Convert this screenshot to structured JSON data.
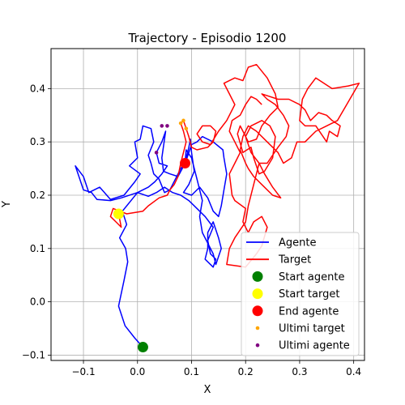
{
  "chart_data": {
    "type": "line",
    "title": "Trajectory - Episodio 1200",
    "xlabel": "X",
    "ylabel": "Y",
    "xlim": [
      -0.16,
      0.42
    ],
    "ylim": [
      -0.11,
      0.475
    ],
    "xticks": [
      -0.1,
      0.0,
      0.1,
      0.2,
      0.3,
      0.4
    ],
    "yticks": [
      -0.1,
      0.0,
      0.1,
      0.2,
      0.3,
      0.4
    ],
    "xtick_labels": [
      "−0.1",
      "0.0",
      "0.1",
      "0.2",
      "0.3",
      "0.4"
    ],
    "ytick_labels": [
      "−0.1",
      "0.0",
      "0.1",
      "0.2",
      "0.3",
      "0.4"
    ],
    "grid": true,
    "legend_position": "lower-right",
    "series": [
      {
        "name": "Agente",
        "color": "#0000ff",
        "points": [
          [
            0.01,
            -0.085
          ],
          [
            -0.005,
            -0.068
          ],
          [
            -0.023,
            -0.045
          ],
          [
            -0.035,
            -0.008
          ],
          [
            -0.025,
            0.04
          ],
          [
            -0.018,
            0.075
          ],
          [
            -0.022,
            0.1
          ],
          [
            -0.033,
            0.12
          ],
          [
            -0.02,
            0.145
          ],
          [
            -0.028,
            0.17
          ],
          [
            0.0,
            0.205
          ],
          [
            0.02,
            0.215
          ],
          [
            0.032,
            0.225
          ],
          [
            0.045,
            0.24
          ],
          [
            0.055,
            0.255
          ],
          [
            0.04,
            0.26
          ],
          [
            0.035,
            0.28
          ],
          [
            0.045,
            0.3
          ],
          [
            0.052,
            0.32
          ],
          [
            0.05,
            0.305
          ],
          [
            0.045,
            0.27
          ],
          [
            0.048,
            0.245
          ],
          [
            0.06,
            0.24
          ],
          [
            0.075,
            0.235
          ],
          [
            0.088,
            0.26
          ],
          [
            0.095,
            0.29
          ],
          [
            0.098,
            0.305
          ],
          [
            0.1,
            0.28
          ],
          [
            0.105,
            0.245
          ],
          [
            0.095,
            0.22
          ],
          [
            0.085,
            0.205
          ],
          [
            0.1,
            0.2
          ],
          [
            0.115,
            0.215
          ],
          [
            0.13,
            0.195
          ],
          [
            0.14,
            0.17
          ],
          [
            0.15,
            0.16
          ],
          [
            0.155,
            0.18
          ],
          [
            0.16,
            0.21
          ],
          [
            0.165,
            0.24
          ],
          [
            0.16,
            0.27
          ],
          [
            0.158,
            0.285
          ],
          [
            0.14,
            0.3
          ],
          [
            0.12,
            0.31
          ],
          [
            0.11,
            0.3
          ],
          [
            0.1,
            0.295
          ],
          [
            0.09,
            0.265
          ],
          [
            0.08,
            0.25
          ],
          [
            0.07,
            0.23
          ],
          [
            0.06,
            0.21
          ],
          [
            0.05,
            0.205
          ],
          [
            0.04,
            0.23
          ],
          [
            0.03,
            0.24
          ],
          [
            0.025,
            0.26
          ],
          [
            0.02,
            0.275
          ],
          [
            0.03,
            0.3
          ],
          [
            0.025,
            0.325
          ],
          [
            0.01,
            0.33
          ],
          [
            0.005,
            0.305
          ],
          [
            -0.005,
            0.3
          ],
          [
            0.0,
            0.27
          ],
          [
            -0.015,
            0.255
          ],
          [
            0.005,
            0.24
          ],
          [
            -0.005,
            0.225
          ],
          [
            -0.025,
            0.2
          ],
          [
            -0.05,
            0.192
          ],
          [
            -0.07,
            0.215
          ],
          [
            -0.09,
            0.205
          ],
          [
            -0.1,
            0.235
          ],
          [
            -0.115,
            0.255
          ],
          [
            -0.1,
            0.21
          ],
          [
            -0.085,
            0.205
          ],
          [
            -0.075,
            0.192
          ],
          [
            -0.05,
            0.19
          ],
          [
            -0.03,
            0.195
          ],
          [
            0.0,
            0.205
          ],
          [
            0.02,
            0.198
          ],
          [
            0.035,
            0.205
          ],
          [
            0.05,
            0.215
          ],
          [
            0.065,
            0.205
          ],
          [
            0.08,
            0.2
          ],
          [
            0.095,
            0.19
          ],
          [
            0.11,
            0.175
          ],
          [
            0.125,
            0.16
          ],
          [
            0.14,
            0.14
          ],
          [
            0.13,
            0.115
          ],
          [
            0.135,
            0.09
          ],
          [
            0.145,
            0.08
          ],
          [
            0.14,
            0.065
          ],
          [
            0.125,
            0.08
          ],
          [
            0.13,
            0.1
          ],
          [
            0.13,
            0.13
          ],
          [
            0.14,
            0.15
          ],
          [
            0.15,
            0.12
          ],
          [
            0.155,
            0.1
          ],
          [
            0.15,
            0.085
          ],
          [
            0.145,
            0.07
          ],
          [
            0.14,
            0.09
          ],
          [
            0.12,
            0.13
          ],
          [
            0.115,
            0.16
          ],
          [
            0.12,
            0.19
          ],
          [
            0.11,
            0.23
          ],
          [
            0.1,
            0.27
          ],
          [
            0.09,
            0.285
          ],
          [
            0.088,
            0.26
          ]
        ]
      },
      {
        "name": "Target",
        "color": "#ff0000",
        "points": [
          [
            -0.035,
            0.165
          ],
          [
            -0.03,
            0.14
          ],
          [
            -0.04,
            0.15
          ],
          [
            -0.05,
            0.16
          ],
          [
            -0.045,
            0.175
          ],
          [
            -0.02,
            0.165
          ],
          [
            0.01,
            0.17
          ],
          [
            0.02,
            0.18
          ],
          [
            0.04,
            0.195
          ],
          [
            0.055,
            0.2
          ],
          [
            0.06,
            0.21
          ],
          [
            0.068,
            0.22
          ],
          [
            0.075,
            0.235
          ],
          [
            0.08,
            0.26
          ],
          [
            0.085,
            0.28
          ],
          [
            0.09,
            0.3
          ],
          [
            0.085,
            0.32
          ],
          [
            0.08,
            0.335
          ],
          [
            0.085,
            0.34
          ],
          [
            0.09,
            0.325
          ],
          [
            0.095,
            0.31
          ],
          [
            0.1,
            0.29
          ],
          [
            0.11,
            0.285
          ],
          [
            0.13,
            0.29
          ],
          [
            0.14,
            0.3
          ],
          [
            0.145,
            0.32
          ],
          [
            0.135,
            0.33
          ],
          [
            0.12,
            0.33
          ],
          [
            0.11,
            0.315
          ],
          [
            0.12,
            0.3
          ],
          [
            0.135,
            0.295
          ],
          [
            0.15,
            0.32
          ],
          [
            0.165,
            0.34
          ],
          [
            0.18,
            0.37
          ],
          [
            0.17,
            0.39
          ],
          [
            0.16,
            0.41
          ],
          [
            0.18,
            0.42
          ],
          [
            0.195,
            0.415
          ],
          [
            0.205,
            0.44
          ],
          [
            0.22,
            0.445
          ],
          [
            0.24,
            0.42
          ],
          [
            0.255,
            0.39
          ],
          [
            0.26,
            0.365
          ],
          [
            0.245,
            0.35
          ],
          [
            0.23,
            0.33
          ],
          [
            0.22,
            0.305
          ],
          [
            0.205,
            0.3
          ],
          [
            0.195,
            0.32
          ],
          [
            0.19,
            0.33
          ],
          [
            0.185,
            0.315
          ],
          [
            0.195,
            0.28
          ],
          [
            0.21,
            0.29
          ],
          [
            0.215,
            0.27
          ],
          [
            0.225,
            0.24
          ],
          [
            0.235,
            0.245
          ],
          [
            0.25,
            0.27
          ],
          [
            0.255,
            0.31
          ],
          [
            0.245,
            0.33
          ],
          [
            0.23,
            0.34
          ],
          [
            0.21,
            0.33
          ],
          [
            0.2,
            0.31
          ],
          [
            0.21,
            0.28
          ],
          [
            0.225,
            0.26
          ],
          [
            0.24,
            0.26
          ],
          [
            0.26,
            0.29
          ],
          [
            0.275,
            0.31
          ],
          [
            0.28,
            0.33
          ],
          [
            0.27,
            0.35
          ],
          [
            0.255,
            0.37
          ],
          [
            0.24,
            0.38
          ],
          [
            0.23,
            0.39
          ],
          [
            0.26,
            0.38
          ],
          [
            0.28,
            0.38
          ],
          [
            0.3,
            0.37
          ],
          [
            0.31,
            0.36
          ],
          [
            0.32,
            0.34
          ],
          [
            0.335,
            0.355
          ],
          [
            0.35,
            0.35
          ],
          [
            0.36,
            0.34
          ],
          [
            0.375,
            0.33
          ],
          [
            0.37,
            0.31
          ],
          [
            0.355,
            0.32
          ],
          [
            0.35,
            0.3
          ],
          [
            0.33,
            0.33
          ],
          [
            0.31,
            0.33
          ],
          [
            0.3,
            0.34
          ],
          [
            0.305,
            0.38
          ],
          [
            0.315,
            0.4
          ],
          [
            0.33,
            0.42
          ],
          [
            0.36,
            0.4
          ],
          [
            0.39,
            0.405
          ],
          [
            0.41,
            0.41
          ],
          [
            0.37,
            0.34
          ],
          [
            0.35,
            0.33
          ],
          [
            0.33,
            0.32
          ],
          [
            0.31,
            0.3
          ],
          [
            0.295,
            0.3
          ],
          [
            0.285,
            0.27
          ],
          [
            0.27,
            0.26
          ],
          [
            0.26,
            0.28
          ],
          [
            0.24,
            0.3
          ],
          [
            0.22,
            0.32
          ],
          [
            0.205,
            0.33
          ],
          [
            0.195,
            0.31
          ],
          [
            0.19,
            0.285
          ],
          [
            0.2,
            0.26
          ],
          [
            0.205,
            0.25
          ],
          [
            0.215,
            0.235
          ],
          [
            0.23,
            0.22
          ],
          [
            0.25,
            0.2
          ],
          [
            0.265,
            0.195
          ],
          [
            0.25,
            0.215
          ],
          [
            0.235,
            0.24
          ],
          [
            0.225,
            0.26
          ],
          [
            0.215,
            0.22
          ],
          [
            0.205,
            0.18
          ],
          [
            0.2,
            0.15
          ],
          [
            0.18,
            0.12
          ],
          [
            0.17,
            0.1
          ],
          [
            0.165,
            0.07
          ],
          [
            0.2,
            0.065
          ],
          [
            0.22,
            0.09
          ],
          [
            0.23,
            0.105
          ],
          [
            0.24,
            0.14
          ],
          [
            0.23,
            0.16
          ],
          [
            0.215,
            0.15
          ],
          [
            0.205,
            0.13
          ],
          [
            0.195,
            0.15
          ],
          [
            0.2,
            0.175
          ],
          [
            0.18,
            0.19
          ],
          [
            0.175,
            0.2
          ],
          [
            0.17,
            0.24
          ],
          [
            0.18,
            0.26
          ],
          [
            0.19,
            0.28
          ],
          [
            0.18,
            0.3
          ],
          [
            0.17,
            0.32
          ],
          [
            0.175,
            0.34
          ],
          [
            0.19,
            0.35
          ],
          [
            0.2,
            0.37
          ],
          [
            0.21,
            0.385
          ],
          [
            0.22,
            0.38
          ],
          [
            0.23,
            0.37
          ]
        ]
      }
    ],
    "markers": [
      {
        "name": "Start agente",
        "x": 0.01,
        "y": -0.085,
        "color": "#008000",
        "size": "large"
      },
      {
        "name": "Start target",
        "x": -0.035,
        "y": 0.165,
        "color": "#ffff00",
        "size": "large"
      },
      {
        "name": "End agente",
        "x": 0.088,
        "y": 0.26,
        "color": "#ff0000",
        "size": "large"
      }
    ],
    "last_points": [
      {
        "name": "Ultimi target",
        "color": "#ffa500",
        "points": [
          [
            0.085,
            0.34
          ],
          [
            0.08,
            0.335
          ],
          [
            0.09,
            0.325
          ]
        ]
      },
      {
        "name": "Ultimi agente",
        "color": "#800080",
        "points": [
          [
            0.045,
            0.33
          ],
          [
            0.055,
            0.33
          ],
          [
            0.035,
            0.28
          ]
        ]
      }
    ],
    "legend": [
      "Agente",
      "Target",
      "Start agente",
      "Start target",
      "End agente",
      "Ultimi target",
      "Ultimi agente"
    ]
  }
}
